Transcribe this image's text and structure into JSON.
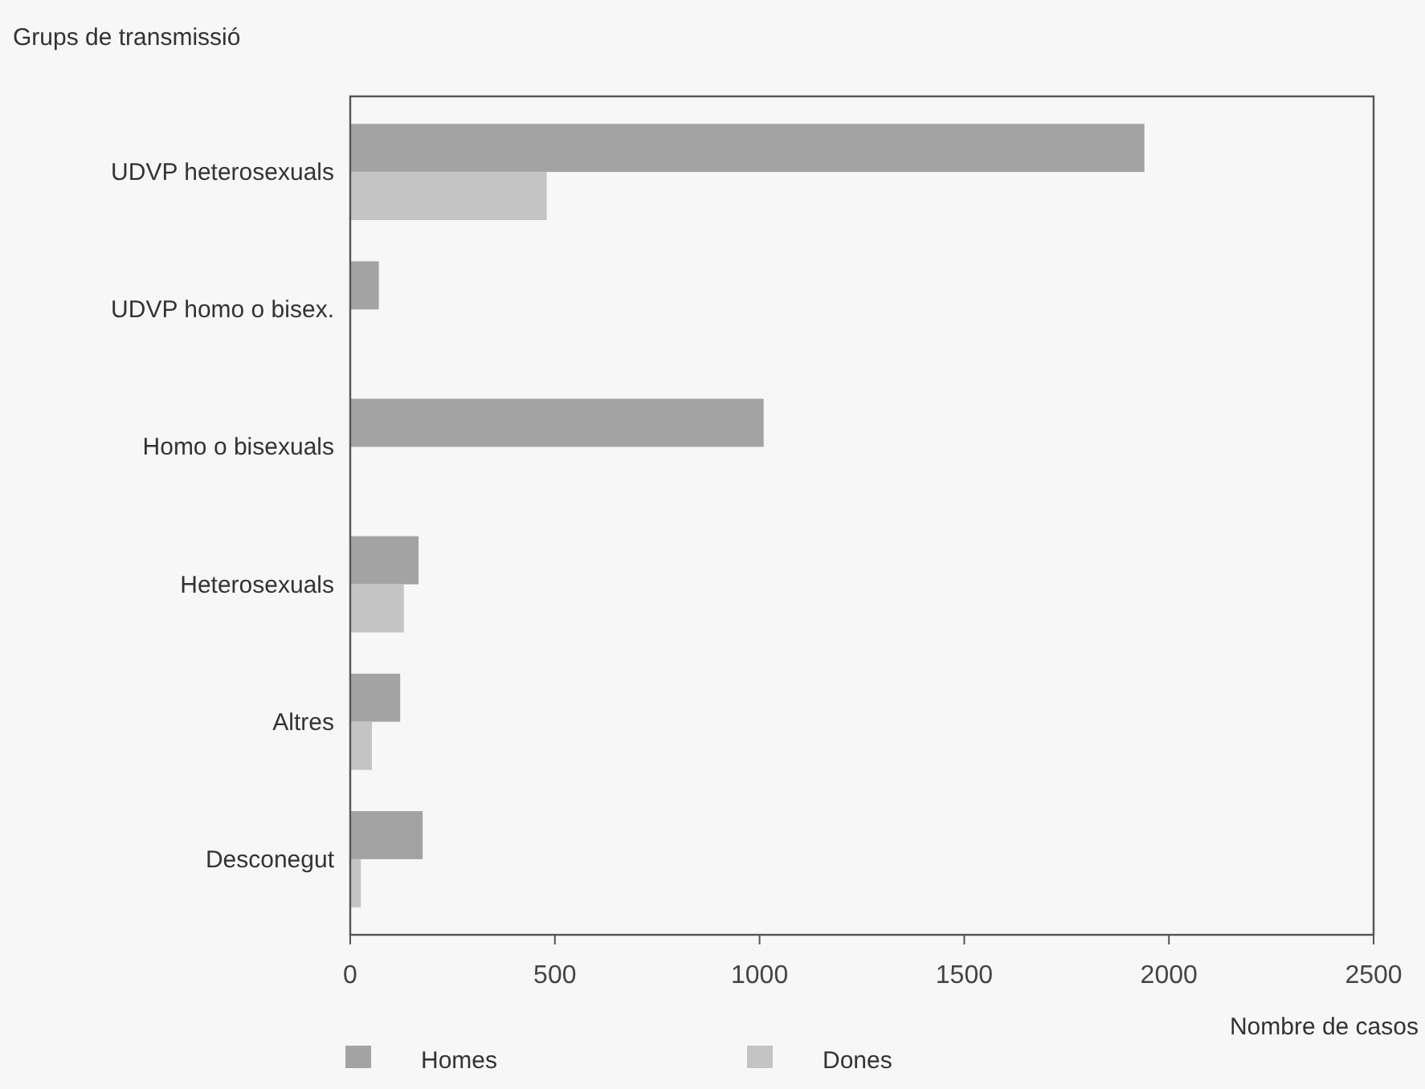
{
  "chart_data": {
    "type": "bar",
    "orientation": "horizontal",
    "ylabel": "Grups de transmissió",
    "xlabel": "Nombre de casos",
    "categories": [
      "UDVP heterosexuals",
      "UDVP homo o bisex.",
      "Homo o bisexuals",
      "Heterosexuals",
      "Altres",
      "Desconegut"
    ],
    "series": [
      {
        "name": "Homes",
        "color": "#a3a3a3",
        "values": [
          1940,
          70,
          1010,
          167,
          122,
          177
        ]
      },
      {
        "name": "Dones",
        "color": "#c4c4c4",
        "values": [
          480,
          null,
          null,
          131,
          53,
          26
        ]
      }
    ],
    "xlim": [
      0,
      2500
    ],
    "xticks": [
      0,
      500,
      1000,
      1500,
      2000,
      2500
    ],
    "grid": false,
    "legend": "bottom"
  }
}
